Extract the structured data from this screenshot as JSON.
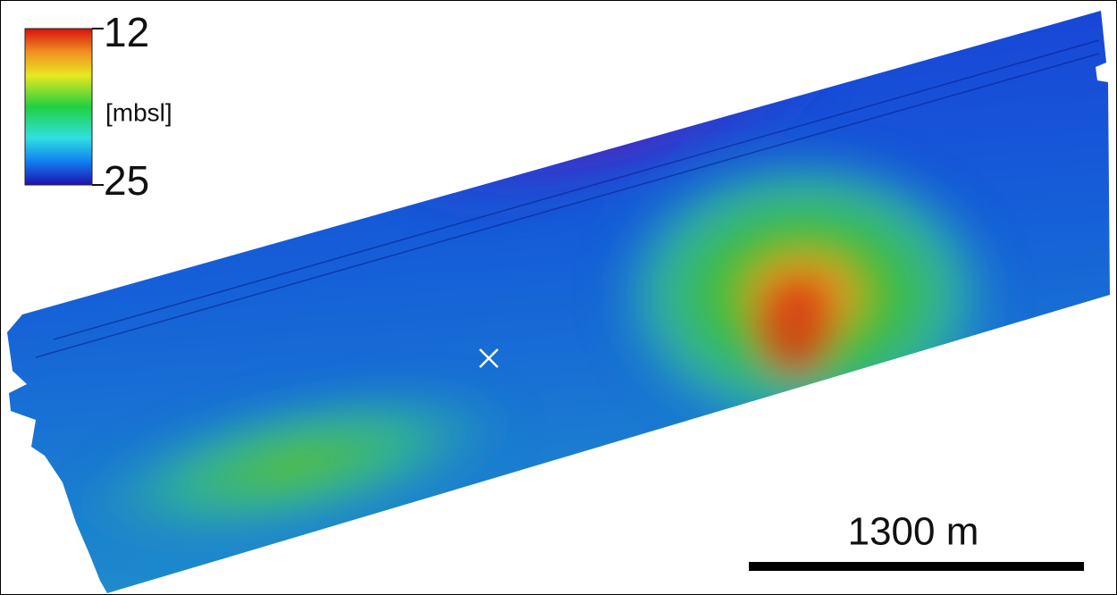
{
  "colorbar": {
    "top": 12,
    "bottom": 25,
    "unit": "[mbsl]"
  },
  "scale_bar": {
    "label": "1300 m"
  }
}
